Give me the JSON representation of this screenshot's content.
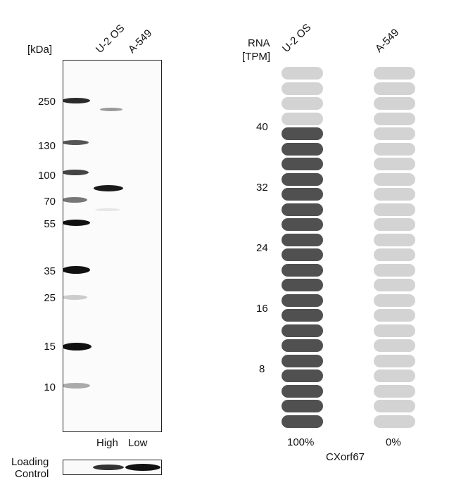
{
  "western_blot": {
    "unit_label": "[kDa]",
    "lanes": [
      "U-2 OS",
      "A-549"
    ],
    "markers": [
      "250",
      "130",
      "100",
      "70",
      "55",
      "35",
      "25",
      "15",
      "10"
    ],
    "expression_labels": [
      "High",
      "Low"
    ],
    "loading_control_label": [
      "Loading",
      "Control"
    ]
  },
  "rna": {
    "axis_title": [
      "RNA",
      "[TPM]"
    ],
    "columns": [
      "U-2 OS",
      "A-549"
    ],
    "ticks": [
      "40",
      "32",
      "24",
      "16",
      "8"
    ],
    "percentages": [
      "100%",
      "0%"
    ],
    "gene": "CXorf67",
    "levels": {
      "U-2 OS": {
        "filled": 20,
        "total": 24
      },
      "A-549": {
        "filled": 0,
        "total": 24
      }
    },
    "colors": {
      "filled": "#505050",
      "empty": "#d3d3d3"
    }
  }
}
